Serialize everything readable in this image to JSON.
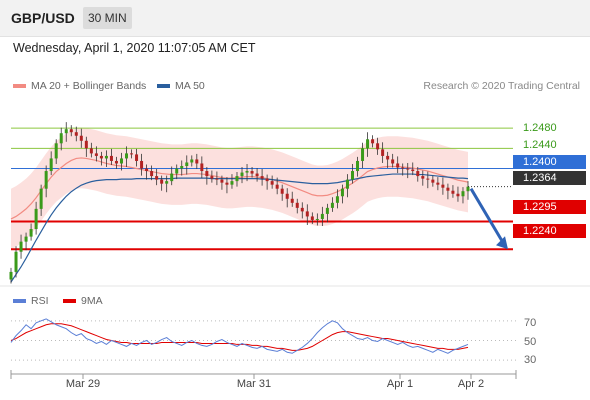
{
  "header": {
    "pair": "GBP/USD",
    "timeframe": "30 MIN"
  },
  "date_line": "Wednesday, April 1, 2020 11:07:05 AM CET",
  "legend": {
    "ma20": {
      "label": "MA 20 + Bollinger Bands",
      "color": "#f28b82"
    },
    "ma50": {
      "label": "MA 50",
      "color": "#2a5f9e"
    },
    "rsi": {
      "label": "RSI",
      "color": "#5b7fd6"
    },
    "rsi_ma": {
      "label": "9MA",
      "color": "#e00000"
    }
  },
  "credit": "Research © 2020 Trading Central",
  "levels": {
    "r2": "1.2480",
    "r1": "1.2440",
    "pivot": "1.2400",
    "last": "1.2364",
    "s1": "1.2295",
    "s2": "1.2240"
  },
  "rsi_ticks": [
    "70",
    "50",
    "30"
  ],
  "x_labels": [
    "Mar 29",
    "Mar 31",
    "Apr 1",
    "Apr 2"
  ],
  "chart_data": {
    "type": "candlestick",
    "ylim": [
      1.2175,
      1.252
    ],
    "level_lines": [
      {
        "value": 1.248,
        "color": "#8cc63f",
        "style": "thin"
      },
      {
        "value": 1.244,
        "color": "#8cc63f",
        "style": "thin"
      },
      {
        "value": 1.24,
        "color": "#2f6fd6",
        "style": "thin"
      },
      {
        "value": 1.2295,
        "color": "#e00000",
        "style": "thick"
      },
      {
        "value": 1.224,
        "color": "#e00000",
        "style": "thick"
      }
    ],
    "close_series": [
      1.2195,
      1.2235,
      1.2255,
      1.2265,
      1.228,
      1.232,
      1.236,
      1.2395,
      1.242,
      1.245,
      1.247,
      1.2478,
      1.2472,
      1.2465,
      1.2455,
      1.244,
      1.243,
      1.2425,
      1.242,
      1.2425,
      1.2415,
      1.241,
      1.242,
      1.243,
      1.2428,
      1.2415,
      1.24,
      1.2395,
      1.2385,
      1.2378,
      1.237,
      1.2375,
      1.239,
      1.24,
      1.2405,
      1.2412,
      1.2418,
      1.241,
      1.2395,
      1.2385,
      1.238,
      1.2378,
      1.2372,
      1.2368,
      1.2375,
      1.2385,
      1.2392,
      1.2395,
      1.239,
      1.2385,
      1.238,
      1.2375,
      1.2368,
      1.236,
      1.235,
      1.234,
      1.2332,
      1.2322,
      1.2315,
      1.2305,
      1.2298,
      1.23,
      1.231,
      1.2322,
      1.2332,
      1.2345,
      1.236,
      1.2378,
      1.2395,
      1.2415,
      1.244,
      1.2458,
      1.245,
      1.2438,
      1.2425,
      1.2418,
      1.241,
      1.2402,
      1.24,
      1.2398,
      1.2395,
      1.2385,
      1.238,
      1.2378,
      1.2372,
      1.2368,
      1.2362,
      1.2356,
      1.235,
      1.2345,
      1.2355,
      1.2364
    ],
    "ma20": [
      1.23,
      1.2305,
      1.2312,
      1.232,
      1.233,
      1.2342,
      1.2356,
      1.237,
      1.2383,
      1.2394,
      1.2402,
      1.241,
      1.2416,
      1.242,
      1.2421,
      1.242,
      1.2418,
      1.2416,
      1.2413,
      1.241,
      1.2408,
      1.2406,
      1.2405,
      1.2404,
      1.2402,
      1.24,
      1.2398,
      1.2396,
      1.2394,
      1.2392,
      1.239,
      1.2389,
      1.2388,
      1.2388,
      1.2388,
      1.2389,
      1.239,
      1.239,
      1.2389,
      1.2388,
      1.2386,
      1.2384,
      1.2382,
      1.2381,
      1.2381,
      1.2382,
      1.2383,
      1.2384,
      1.2384,
      1.2383,
      1.2382,
      1.238,
      1.2378,
      1.2375,
      1.2372,
      1.2368,
      1.2364,
      1.236,
      1.2356,
      1.2352,
      1.2348,
      1.2346,
      1.2346,
      1.2347,
      1.235,
      1.2354,
      1.2359,
      1.2365,
      1.2371,
      1.2378,
      1.2386,
      1.2394,
      1.2398,
      1.2401,
      1.2403,
      1.2404,
      1.2404,
      1.2404,
      1.2403,
      1.2402,
      1.2401,
      1.2399,
      1.2397,
      1.2395,
      1.2392,
      1.2389,
      1.2386,
      1.2383,
      1.238,
      1.2377,
      1.2375,
      1.2373
    ],
    "band_width": 0.006,
    "ma50": [
      1.2175,
      1.219,
      1.2205,
      1.2222,
      1.224,
      1.2258,
      1.2275,
      1.2292,
      1.2308,
      1.2322,
      1.2334,
      1.2345,
      1.2354,
      1.2361,
      1.2367,
      1.2371,
      1.2374,
      1.2376,
      1.2377,
      1.2378,
      1.2378,
      1.2378,
      1.2379,
      1.2379,
      1.2379,
      1.238,
      1.238,
      1.238,
      1.238,
      1.238,
      1.238,
      1.238,
      1.238,
      1.2381,
      1.2381,
      1.2381,
      1.2381,
      1.2381,
      1.2381,
      1.2381,
      1.238,
      1.238,
      1.238,
      1.238,
      1.238,
      1.238,
      1.238,
      1.238,
      1.238,
      1.238,
      1.2379,
      1.2379,
      1.2378,
      1.2377,
      1.2376,
      1.2375,
      1.2374,
      1.2373,
      1.2372,
      1.2371,
      1.237,
      1.237,
      1.237,
      1.237,
      1.2371,
      1.2372,
      1.2374,
      1.2376,
      1.2378,
      1.238,
      1.2382,
      1.2384,
      1.2385,
      1.2386,
      1.2387,
      1.2388,
      1.2389,
      1.2389,
      1.2389,
      1.2389,
      1.2389,
      1.2388,
      1.2388,
      1.2387,
      1.2386,
      1.2385,
      1.2384,
      1.2383,
      1.2382,
      1.2381,
      1.2381,
      1.238
    ],
    "forecast_arrow": {
      "from": 1.236,
      "to": 1.224
    },
    "rsi": {
      "ylim": [
        20,
        80
      ],
      "ticks": [
        70,
        50,
        30
      ],
      "rsi_values": [
        48,
        55,
        60,
        66,
        62,
        68,
        70,
        72,
        69,
        66,
        64,
        62,
        58,
        55,
        57,
        52,
        50,
        47,
        49,
        46,
        50,
        48,
        46,
        44,
        47,
        45,
        48,
        50,
        46,
        48,
        51,
        53,
        49,
        47,
        45,
        48,
        50,
        47,
        45,
        44,
        46,
        49,
        51,
        48,
        46,
        44,
        47,
        45,
        43,
        42,
        44,
        41,
        40,
        39,
        41,
        38,
        37,
        40,
        43,
        47,
        52,
        58,
        63,
        67,
        70,
        68,
        62,
        58,
        55,
        52,
        51,
        53,
        50,
        49,
        52,
        50,
        48,
        46,
        48,
        45,
        43,
        44,
        42,
        40,
        38,
        41,
        39,
        37,
        40,
        42,
        44,
        46
      ],
      "ma_values": [
        50,
        52,
        55,
        58,
        60,
        62,
        64,
        66,
        67,
        67,
        67,
        66,
        65,
        63,
        61,
        59,
        57,
        55,
        53,
        51,
        50,
        49,
        48,
        48,
        47,
        47,
        47,
        47,
        47,
        47,
        48,
        48,
        48,
        48,
        48,
        48,
        48,
        48,
        47,
        47,
        47,
        47,
        47,
        47,
        47,
        46,
        46,
        46,
        45,
        45,
        44,
        44,
        43,
        42,
        42,
        41,
        40,
        40,
        41,
        42,
        44,
        47,
        50,
        53,
        56,
        58,
        59,
        59,
        58,
        57,
        56,
        55,
        54,
        53,
        52,
        52,
        51,
        50,
        49,
        48,
        47,
        46,
        45,
        44,
        43,
        42,
        42,
        41,
        41,
        41,
        42,
        43
      ]
    }
  }
}
